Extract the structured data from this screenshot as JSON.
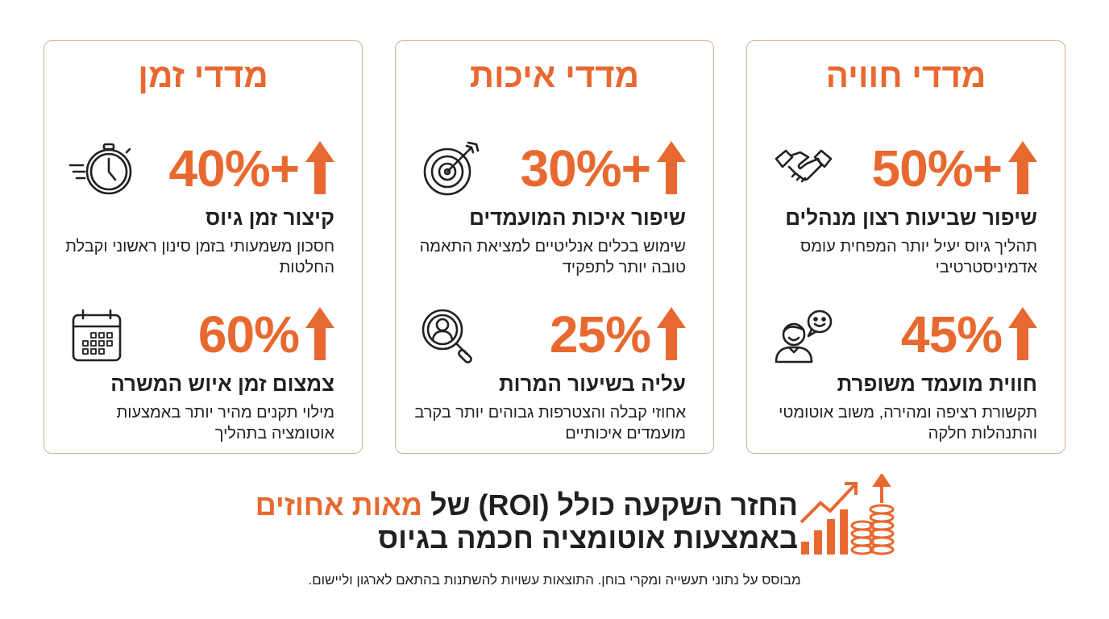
{
  "accent_color": "#e8692f",
  "cards": [
    {
      "title": "מדדי חוויה",
      "metrics": [
        {
          "value": "50%+",
          "icon": "handshake-icon",
          "heading": "שיפור שביעות רצון מנהלים",
          "desc": "תהליך גיוס יעיל יותר המפחית עומס אדמיניסטרטיבי"
        },
        {
          "value": "45%",
          "icon": "smiling-person-chat-icon",
          "heading": "חווית מועמד משופרת",
          "desc": "תקשורת רציפה ומהירה, משוב אוטומטי והתנהלות חלקה"
        }
      ]
    },
    {
      "title": "מדדי איכות",
      "metrics": [
        {
          "value": "30%+",
          "icon": "target-icon",
          "heading": "שיפור איכות המועמדים",
          "desc": "שימוש בכלים אנליטיים למציאת התאמה טובה יותר לתפקיד"
        },
        {
          "value": "25%",
          "icon": "candidate-search-icon",
          "heading": "עליה בשיעור המרות",
          "desc": "אחוזי קבלה והצטרפות גבוהים יותר בקרב מועמדים איכותיים"
        }
      ]
    },
    {
      "title": "מדדי זמן",
      "metrics": [
        {
          "value": "40%+",
          "icon": "stopwatch-icon",
          "heading": "קיצור זמן גיוס",
          "desc": "חסכון משמעותי בזמן סינון ראשוני וקבלת החלטות"
        },
        {
          "value": "60%",
          "icon": "calendar-icon",
          "heading": "צמצום זמן איוש המשרה",
          "desc": "מילוי תקנים מהיר יותר באמצעות אוטומציה בתהליך"
        }
      ]
    }
  ],
  "roi": {
    "line1_start": "החזר השקעה כולל (ROI) של ",
    "line1_highlight": "מאות אחוזים",
    "line2": "באמצעות אוטומציה חכמה בגיוס",
    "icon": "growth-chart-coins-icon"
  },
  "footnote": "מבוסס על נתוני תעשייה ומקרי בוחן. התוצאות עשויות להשתנות בהתאם לארגון וליישום."
}
